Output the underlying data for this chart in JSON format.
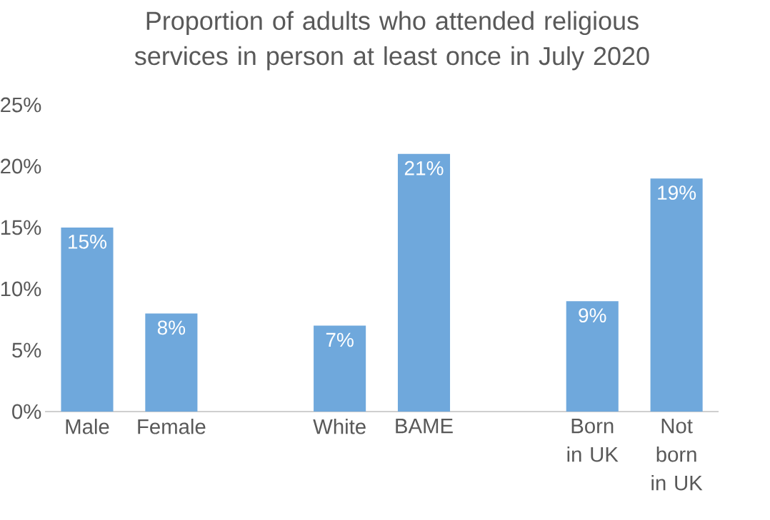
{
  "chart_data": {
    "type": "bar",
    "title": "Proportion of adults who attended religious services in person at least once in July 2020",
    "categories": [
      "Male",
      "Female",
      null,
      "White",
      "BAME",
      null,
      "Born in UK",
      "Not born in UK"
    ],
    "values": [
      15,
      8,
      null,
      7,
      21,
      null,
      9,
      19
    ],
    "value_labels": [
      "15%",
      "8%",
      null,
      "7%",
      "21%",
      null,
      "9%",
      "19%"
    ],
    "color": "#6fa8dc",
    "ylim": [
      0,
      25
    ],
    "yticks": [
      {
        "value": 0,
        "label": "0%"
      },
      {
        "value": 5,
        "label": "5%"
      },
      {
        "value": 10,
        "label": "10%"
      },
      {
        "value": 15,
        "label": "15%"
      },
      {
        "value": 20,
        "label": "20%"
      },
      {
        "value": 25,
        "label": "25%"
      }
    ]
  }
}
